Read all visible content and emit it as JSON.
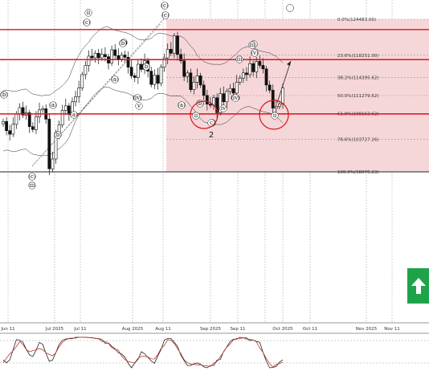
{
  "chart_data": {
    "type": "candlestick",
    "title": "",
    "xlabel": "",
    "ylabel": "",
    "ylim": [
      91500,
      126500
    ],
    "x_tick_labels": [
      "Jun 11",
      "Jul 2025",
      "Jul 11",
      "Aug 2025",
      "Aug 11",
      "Sep 2025",
      "Sep 11",
      "Oct 2025",
      "Oct 11",
      "Nov 2025",
      "Nov 11"
    ],
    "fibonacci_levels": [
      {
        "label": "0.0%(124483.00)",
        "value": 124483.0
      },
      {
        "label": "23.6%(118251.00)",
        "value": 118251.0
      },
      {
        "label": "38.2%(114395.62)",
        "value": 114395.62
      },
      {
        "label": "50.0%(111279.62)",
        "value": 111279.62
      },
      {
        "label": "61.8%(108163.62)",
        "value": 108163.62
      },
      {
        "label": "78.6%(103727.26)",
        "value": 103727.26
      },
      {
        "label": "100.0%(98076.23)",
        "value": 98076.23
      }
    ],
    "resistance_levels": [
      122700,
      117500
    ],
    "support_levels": [
      108100
    ],
    "close_series": [
      106800,
      105200,
      104600,
      106300,
      108100,
      109200,
      107900,
      108300,
      105900,
      105400,
      107600,
      108800,
      109000,
      107200,
      98600,
      100300,
      104800,
      106200,
      108700,
      109500,
      108000,
      110200,
      111100,
      112600,
      114900,
      116500,
      118100,
      117800,
      118600,
      117800,
      118400,
      118000,
      116900,
      119200,
      118200,
      117600,
      118300,
      117900,
      116200,
      114700,
      114400,
      116700,
      115800,
      117300,
      115500,
      113200,
      114800,
      113400,
      116200,
      117800,
      119300,
      118600,
      121600,
      118400,
      117300,
      114600,
      115200,
      112300,
      113600,
      114700,
      113100,
      111300,
      109800,
      109600,
      110900,
      108300,
      111600,
      110200,
      112000,
      112500,
      111700,
      113600,
      114300,
      115200,
      114900,
      116800,
      115400,
      117200,
      116500,
      115900,
      113100,
      112200,
      109100,
      109400,
      109800,
      112600
    ],
    "wave_labels": [
      "(c)",
      "iii",
      "(b)",
      "(a)",
      "(b)",
      "(c)",
      "(a)",
      "(c)",
      "(iv)",
      "v",
      "(c)",
      "(c)",
      "ii",
      "(b)",
      "(a)",
      "(b)",
      "(a)",
      "(b)",
      "(c)",
      "ii",
      "iv",
      "(iv)",
      "iii",
      "(v)",
      "i",
      "ii",
      "c",
      "iii",
      "2"
    ],
    "oscillator": {
      "type": "stochastic"
    }
  },
  "ui": {
    "up_arrow_icon": "up-arrow-icon",
    "accent_green": "#1fa34a",
    "resistance_color": "#d9141b",
    "zone_color": "#f6d7d9"
  }
}
